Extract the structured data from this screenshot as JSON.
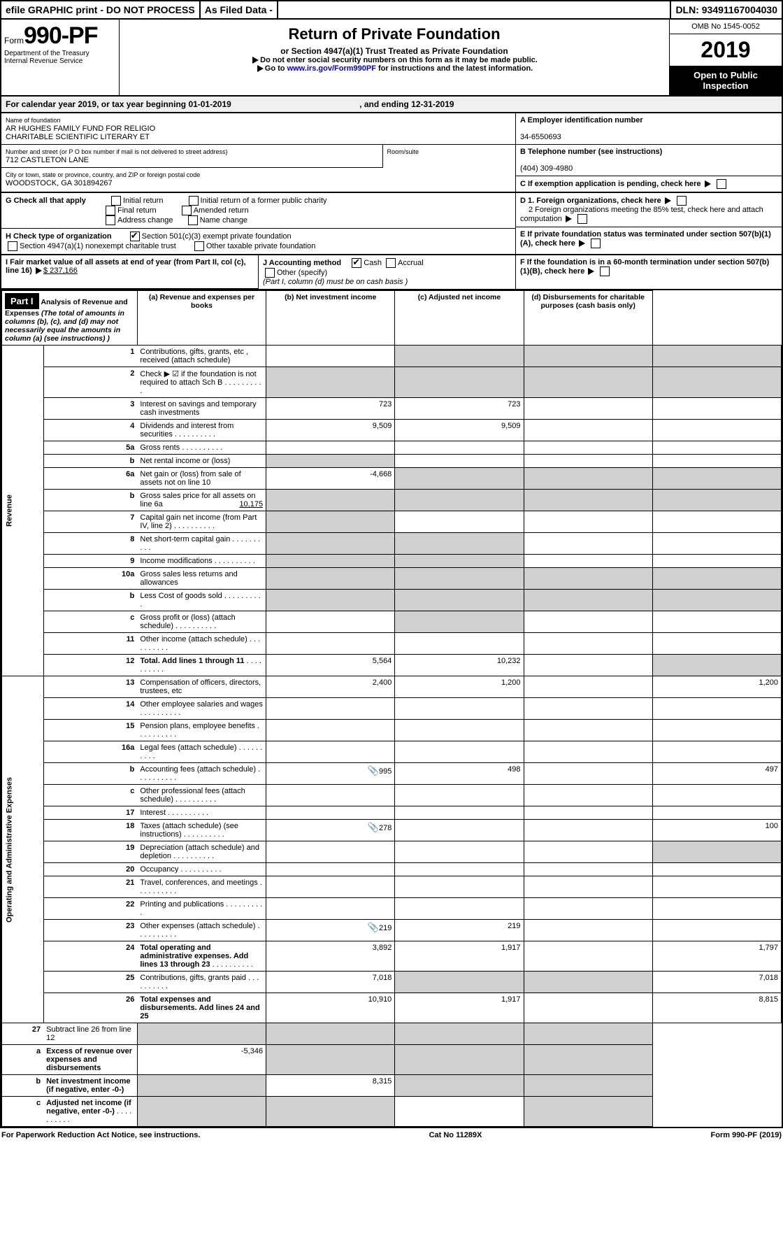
{
  "top": {
    "efile": "efile GRAPHIC print - DO NOT PROCESS",
    "asfiled": "As Filed Data - ",
    "dln": "DLN: 93491167004030"
  },
  "hdr": {
    "form": "Form",
    "num": "990-PF",
    "dept": "Department of the Treasury",
    "irs": "Internal Revenue Service",
    "title": "Return of Private Foundation",
    "sub": "or Section 4947(a)(1) Trust Treated as Private Foundation",
    "note1": "Do not enter social security numbers on this form as it may be made public.",
    "note2": "Go to ",
    "link": "www.irs.gov/Form990PF",
    "note3": " for instructions and the latest information.",
    "omb": "OMB No 1545-0052",
    "year": "2019",
    "open": "Open to Public Inspection"
  },
  "cal": {
    "a": "For calendar year 2019, or tax year beginning 01-01-2019",
    "b": ", and ending 12-31-2019"
  },
  "name": {
    "lbl": "Name of foundation",
    "v1": "AR HUGHES FAMILY FUND FOR RELIGIO",
    "v2": "CHARITABLE SCIENTIFIC LITERARY ET"
  },
  "addr": {
    "lbl": "Number and street (or P O  box number if mail is not delivered to street address)",
    "room": "Room/suite",
    "v": "712 CASTLETON LANE"
  },
  "city": {
    "lbl": "City or town, state or province, country, and ZIP or foreign postal code",
    "v": "WOODSTOCK, GA  301894267"
  },
  "A": {
    "lbl": "A Employer identification number",
    "v": "34-6550693"
  },
  "B": {
    "lbl": "B Telephone number (see instructions)",
    "v": "(404) 309-4980"
  },
  "C": {
    "lbl": "C If exemption application is pending, check here"
  },
  "D": {
    "d1": "D 1. Foreign organizations, check here",
    "d2": "2  Foreign organizations meeting the 85% test, check here and attach computation"
  },
  "E": {
    "lbl": "E  If private foundation status was terminated under section 507(b)(1)(A), check here"
  },
  "F": {
    "lbl": "F  If the foundation is in a 60-month termination under section 507(b)(1)(B), check here"
  },
  "G": {
    "lbl": "G Check all that apply",
    "o": [
      "Initial return",
      "Initial return of a former public charity",
      "Final return",
      "Amended return",
      "Address change",
      "Name change"
    ]
  },
  "H": {
    "lbl": "H Check type of organization",
    "o1": "Section 501(c)(3) exempt private foundation",
    "o2": "Section 4947(a)(1) nonexempt charitable trust",
    "o3": "Other taxable private foundation"
  },
  "I": {
    "lbl": "I Fair market value of all assets at end of year (from Part II, col  (c), line 16) ",
    "val": "$  237,166"
  },
  "J": {
    "lbl": "J Accounting method",
    "o1": "Cash",
    "o2": "Accrual",
    "o3": "Other (specify)",
    "note": "(Part I, column (d) must be on cash basis )"
  },
  "part1": {
    "t": "Part I",
    "h": "Analysis of Revenue and Expenses",
    "sub": "(The total of amounts in columns (b), (c), and (d) may not necessarily equal the amounts in column (a) (see instructions) )",
    "cols": [
      "(a)  Revenue and expenses per books",
      "(b)  Net investment income",
      "(c)  Adjusted net income",
      "(d)  Disbursements for charitable purposes (cash basis only)"
    ]
  },
  "sideRev": "Revenue",
  "sideExp": "Operating and Administrative Expenses",
  "rows": [
    {
      "n": "1",
      "l": "Contributions, gifts, grants, etc , received (attach schedule)",
      "shade_bcd": true
    },
    {
      "n": "2",
      "l": "Check ▶ ☑ if the foundation is not required to attach Sch  B",
      "dots": true,
      "shade_bcd": true,
      "shade_a": true
    },
    {
      "n": "3",
      "l": "Interest on savings and temporary cash investments",
      "a": "723",
      "b": "723"
    },
    {
      "n": "4",
      "l": "Dividends and interest from securities",
      "dots": true,
      "a": "9,509",
      "b": "9,509"
    },
    {
      "n": "5a",
      "l": "Gross rents",
      "dots": true
    },
    {
      "n": "b",
      "l": "Net rental income or (loss)",
      "shade_a": true
    },
    {
      "n": "6a",
      "l": "Net gain or (loss) from sale of assets not on line 10",
      "a": "-4,668",
      "shade_bcd": true
    },
    {
      "n": "b",
      "l": "Gross sales price for all assets on line 6a",
      "extra": "10,175",
      "shade_all": true
    },
    {
      "n": "7",
      "l": "Capital gain net income (from Part IV, line 2)",
      "dots": true,
      "shade_a": true
    },
    {
      "n": "8",
      "l": "Net short-term capital gain",
      "dots": true,
      "shade_a": true,
      "shade_b": true
    },
    {
      "n": "9",
      "l": "Income modifications",
      "dots": true,
      "shade_a": true,
      "shade_b": true
    },
    {
      "n": "10a",
      "l": "Gross sales less returns and allowances",
      "shade_all": true
    },
    {
      "n": "b",
      "l": "Less  Cost of goods sold",
      "dots": true,
      "shade_all": true
    },
    {
      "n": "c",
      "l": "Gross profit or (loss) (attach schedule)",
      "dots": true,
      "shade_b": true
    },
    {
      "n": "11",
      "l": "Other income (attach schedule)",
      "dots": true
    },
    {
      "n": "12",
      "l": "Total. Add lines 1 through 11",
      "bold": true,
      "dots": true,
      "a": "5,564",
      "b": "10,232",
      "shade_d": true
    }
  ],
  "exprows": [
    {
      "n": "13",
      "l": "Compensation of officers, directors, trustees, etc",
      "a": "2,400",
      "b": "1,200",
      "d": "1,200"
    },
    {
      "n": "14",
      "l": "Other employee salaries and wages",
      "dots": true
    },
    {
      "n": "15",
      "l": "Pension plans, employee benefits",
      "dots": true
    },
    {
      "n": "16a",
      "l": "Legal fees (attach schedule)",
      "dots": true
    },
    {
      "n": "b",
      "l": "Accounting fees (attach schedule)",
      "dots": true,
      "icon": true,
      "a": "995",
      "b": "498",
      "d": "497"
    },
    {
      "n": "c",
      "l": "Other professional fees (attach schedule)",
      "dots": true
    },
    {
      "n": "17",
      "l": "Interest",
      "dots": true
    },
    {
      "n": "18",
      "l": "Taxes (attach schedule) (see instructions)",
      "dots": true,
      "icon": true,
      "a": "278",
      "d": "100"
    },
    {
      "n": "19",
      "l": "Depreciation (attach schedule) and depletion",
      "dots": true,
      "shade_d": true
    },
    {
      "n": "20",
      "l": "Occupancy",
      "dots": true
    },
    {
      "n": "21",
      "l": "Travel, conferences, and meetings",
      "dots": true
    },
    {
      "n": "22",
      "l": "Printing and publications",
      "dots": true
    },
    {
      "n": "23",
      "l": "Other expenses (attach schedule)",
      "dots": true,
      "icon": true,
      "a": "219",
      "b": "219"
    },
    {
      "n": "24",
      "l": "Total operating and administrative expenses. Add lines 13 through 23",
      "bold": true,
      "dots": true,
      "a": "3,892",
      "b": "1,917",
      "d": "1,797"
    },
    {
      "n": "25",
      "l": "Contributions, gifts, grants paid",
      "dots": true,
      "a": "7,018",
      "d": "7,018",
      "shade_bc": true
    },
    {
      "n": "26",
      "l": "Total expenses and disbursements. Add lines 24 and 25",
      "bold": true,
      "a": "10,910",
      "b": "1,917",
      "d": "8,815"
    }
  ],
  "botrows": [
    {
      "n": "27",
      "l": "Subtract line 26 from line 12",
      "shade_all": true
    },
    {
      "n": "a",
      "l": "Excess of revenue over expenses and disbursements",
      "bold": true,
      "a": "-5,346",
      "shade_bcd": true
    },
    {
      "n": "b",
      "l": "Net investment income (if negative, enter -0-)",
      "bold": true,
      "b": "8,315",
      "shade_a": true,
      "shade_cd": true
    },
    {
      "n": "c",
      "l": "Adjusted net income (if negative, enter -0-)",
      "bold": true,
      "dots": true,
      "shade_a": true,
      "shade_b": true,
      "shade_d": true
    }
  ],
  "foot": {
    "l": "For Paperwork Reduction Act Notice, see instructions.",
    "m": "Cat  No  11289X",
    "r": "Form 990-PF (2019)"
  }
}
